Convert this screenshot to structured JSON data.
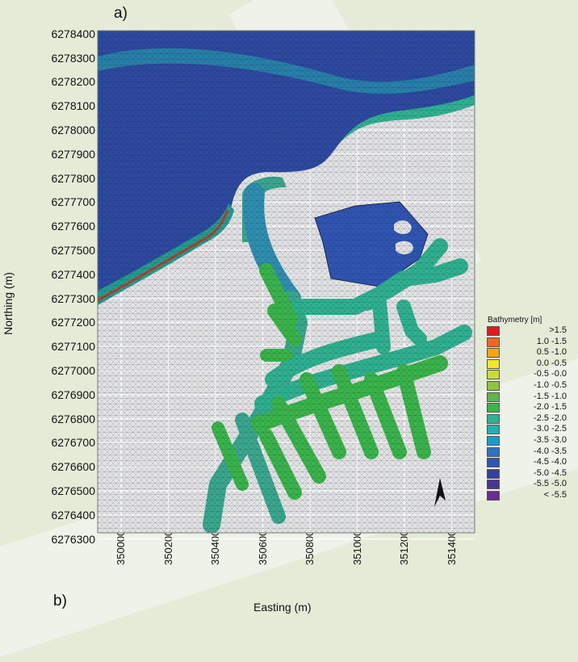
{
  "panel_a_label": "a)",
  "panel_b_label": "b)",
  "x_axis_title": "Easting (m)",
  "y_axis_title": "Northing (m)",
  "y_ticks": [
    "6278400",
    "6278300",
    "6278200",
    "6278100",
    "6278000",
    "6277900",
    "6277800",
    "6277700",
    "6277600",
    "6277500",
    "6277400",
    "6277300",
    "6277200",
    "6277100",
    "6277000",
    "6276900",
    "6276800",
    "6276700",
    "6276600",
    "6276500",
    "6276400",
    "6276300"
  ],
  "x_ticks": [
    "350000",
    "350200",
    "350400",
    "350600",
    "350800",
    "351000",
    "351200",
    "351400"
  ],
  "legend": {
    "title": "Bathymetry [m]",
    "entries": [
      {
        "label": ">1.5",
        "color": "#e41a1c"
      },
      {
        "label": "1.0 -1.5",
        "color": "#f26522"
      },
      {
        "label": "0.5 -1.0",
        "color": "#f7a21b"
      },
      {
        "label": "0.0 -0.5",
        "color": "#f2e52a"
      },
      {
        "label": "-0.5 -0.0",
        "color": "#c7dc3a"
      },
      {
        "label": "-1.0 -0.5",
        "color": "#8cc63f"
      },
      {
        "label": "-1.5 -1.0",
        "color": "#5fb649"
      },
      {
        "label": "-2.0 -1.5",
        "color": "#39b54a"
      },
      {
        "label": "-2.5 -2.0",
        "color": "#2fb28f"
      },
      {
        "label": "-3.0 -2.5",
        "color": "#25aeb0"
      },
      {
        "label": "-3.5 -3.0",
        "color": "#1b9cc9"
      },
      {
        "label": "-4.0 -3.5",
        "color": "#2b74c4"
      },
      {
        "label": "-4.5 -4.0",
        "color": "#3056b3"
      },
      {
        "label": "-5.0 -4.5",
        "color": "#3340a0"
      },
      {
        "label": "-5.5 -5.0",
        "color": "#4a3492"
      },
      {
        "label": "< -5.5",
        "color": "#6a2c91"
      }
    ]
  },
  "colors": {
    "plot_background": "#e3e3e3",
    "grid": "#ffffff",
    "deep_water": "#2d4aa0",
    "channel_water": "#3aa88f",
    "shore_band": "#1f9f8c",
    "mesh_edge": "#0d1430"
  }
}
